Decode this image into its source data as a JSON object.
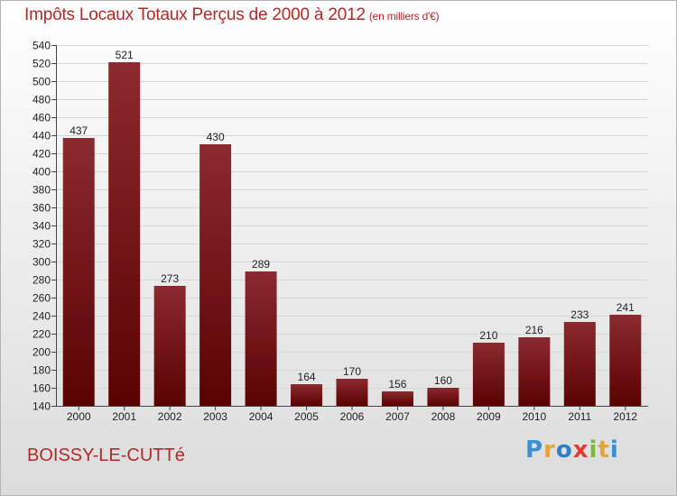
{
  "header": {
    "title": "Impôts Locaux Totaux Perçus de 2000 à 2012",
    "subtitle": "(en milliers d'€)"
  },
  "footer": {
    "commune": "BOISSY-LE-CUTTé",
    "logo": "Proxiti"
  },
  "colors": {
    "title": "#b02a2a",
    "bar_top": "#8b2a2f",
    "bar_bottom": "#5a0202"
  },
  "chart_data": {
    "type": "bar",
    "title": "Impôts Locaux Totaux Perçus de 2000 à 2012",
    "categories": [
      "2000",
      "2001",
      "2002",
      "2003",
      "2004",
      "2005",
      "2006",
      "2007",
      "2008",
      "2009",
      "2010",
      "2011",
      "2012"
    ],
    "values": [
      437,
      521,
      273,
      430,
      289,
      164,
      170,
      156,
      160,
      210,
      216,
      233,
      241
    ],
    "ylim": [
      140,
      540
    ],
    "yticks": [
      140,
      160,
      180,
      200,
      220,
      240,
      260,
      280,
      300,
      320,
      340,
      360,
      380,
      400,
      420,
      440,
      460,
      480,
      500,
      520,
      540
    ],
    "grid": true,
    "legend": "none"
  }
}
